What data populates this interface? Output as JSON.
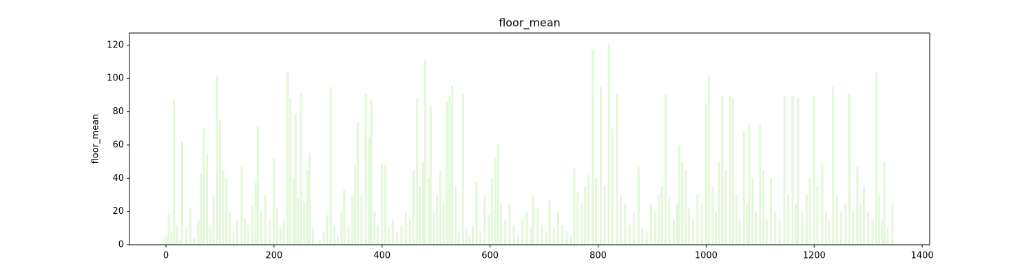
{
  "chart_data": {
    "type": "bar",
    "title": "floor_mean",
    "y_label": "floor_mean",
    "color": "#e2f8d8",
    "x": [
      0,
      5,
      10,
      15,
      20,
      25,
      30,
      38,
      45,
      52,
      60,
      65,
      70,
      76,
      82,
      88,
      95,
      100,
      106,
      112,
      118,
      125,
      132,
      140,
      146,
      152,
      160,
      166,
      170,
      176,
      184,
      192,
      200,
      206,
      212,
      218,
      225,
      230,
      236,
      240,
      245,
      250,
      256,
      262,
      266,
      272,
      285,
      292,
      298,
      305,
      312,
      318,
      325,
      330,
      338,
      345,
      350,
      355,
      362,
      370,
      376,
      380,
      386,
      392,
      400,
      406,
      412,
      420,
      428,
      436,
      444,
      452,
      458,
      465,
      470,
      476,
      480,
      486,
      490,
      496,
      502,
      508,
      514,
      520,
      525,
      530,
      536,
      542,
      550,
      556,
      562,
      568,
      575,
      582,
      590,
      598,
      604,
      610,
      615,
      620,
      628,
      636,
      644,
      652,
      660,
      668,
      676,
      680,
      688,
      696,
      704,
      710,
      718,
      726,
      734,
      742,
      750,
      756,
      762,
      770,
      776,
      782,
      790,
      796,
      805,
      812,
      820,
      826,
      835,
      842,
      850,
      858,
      866,
      875,
      882,
      890,
      898,
      906,
      912,
      918,
      925,
      932,
      940,
      946,
      950,
      956,
      962,
      968,
      976,
      984,
      992,
      1000,
      1005,
      1012,
      1018,
      1024,
      1030,
      1036,
      1045,
      1050,
      1056,
      1062,
      1070,
      1076,
      1080,
      1086,
      1092,
      1100,
      1106,
      1112,
      1120,
      1128,
      1136,
      1145,
      1152,
      1160,
      1166,
      1170,
      1178,
      1186,
      1192,
      1200,
      1206,
      1215,
      1222,
      1228,
      1235,
      1242,
      1250,
      1258,
      1265,
      1272,
      1280,
      1286,
      1292,
      1300,
      1308,
      1315,
      1320,
      1326,
      1330,
      1336,
      1345
    ],
    "values": [
      5,
      18,
      8,
      87,
      12,
      3,
      62,
      10,
      22,
      4,
      15,
      43,
      70,
      55,
      12,
      30,
      102,
      75,
      45,
      40,
      20,
      8,
      15,
      47,
      16,
      12,
      24,
      38,
      71,
      20,
      30,
      15,
      52,
      22,
      10,
      15,
      104,
      88,
      40,
      79,
      28,
      91,
      26,
      45,
      55,
      10,
      3,
      8,
      18,
      95,
      12,
      5,
      20,
      33,
      12,
      30,
      48,
      74,
      30,
      91,
      65,
      87,
      20,
      12,
      49,
      48,
      10,
      15,
      8,
      12,
      20,
      16,
      45,
      88,
      35,
      50,
      111,
      40,
      84,
      20,
      30,
      45,
      25,
      86,
      90,
      96,
      35,
      8,
      91,
      10,
      5,
      12,
      38,
      8,
      30,
      18,
      40,
      52,
      61,
      25,
      15,
      25,
      12,
      6,
      15,
      20,
      10,
      30,
      22,
      12,
      8,
      27,
      10,
      20,
      12,
      8,
      5,
      46,
      32,
      25,
      35,
      42,
      117,
      40,
      95,
      35,
      121,
      70,
      91,
      30,
      25,
      12,
      20,
      47,
      10,
      8,
      25,
      20,
      30,
      35,
      91,
      28,
      15,
      25,
      60,
      50,
      45,
      22,
      15,
      30,
      25,
      85,
      102,
      35,
      20,
      50,
      90,
      45,
      90,
      88,
      30,
      15,
      68,
      25,
      72,
      40,
      20,
      72,
      45,
      15,
      40,
      20,
      15,
      90,
      30,
      90,
      25,
      88,
      20,
      30,
      40,
      90,
      35,
      49,
      20,
      15,
      95,
      30,
      20,
      25,
      91,
      20,
      47,
      25,
      35,
      20,
      15,
      104,
      30,
      15,
      50,
      10,
      25
    ],
    "xlim": [
      -67.6,
      1413.9
    ],
    "ylim": [
      0,
      127.4
    ],
    "xticks": [
      0,
      200,
      400,
      600,
      800,
      1000,
      1200,
      1400
    ],
    "yticks": [
      0,
      20,
      40,
      60,
      80,
      100,
      120
    ]
  }
}
